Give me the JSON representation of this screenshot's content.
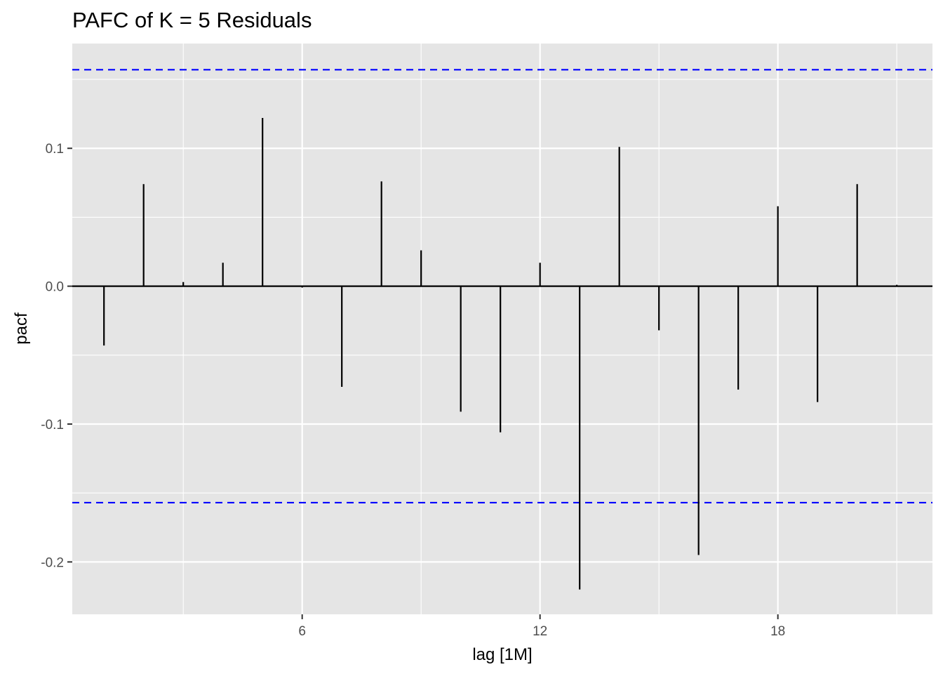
{
  "chart_data": {
    "type": "bar",
    "title": "PAFC of K = 5 Residuals",
    "xlabel": "lag [1M]",
    "ylabel": "pacf",
    "x": [
      1,
      2,
      3,
      4,
      5,
      6,
      7,
      8,
      9,
      10,
      11,
      12,
      13,
      14,
      15,
      16,
      17,
      18,
      19,
      20,
      21
    ],
    "values": [
      -0.043,
      0.074,
      0.003,
      0.017,
      0.122,
      -0.001,
      -0.073,
      0.076,
      0.026,
      -0.091,
      -0.106,
      0.017,
      -0.22,
      0.101,
      -0.032,
      -0.195,
      -0.075,
      0.058,
      -0.084,
      0.074,
      0.001
    ],
    "xlim": [
      0.2,
      21.9
    ],
    "ylim": [
      -0.238,
      0.176
    ],
    "x_ticks": [
      6,
      12,
      18
    ],
    "x_tick_labels": [
      "6",
      "12",
      "18"
    ],
    "y_ticks": [
      -0.2,
      -0.1,
      0.0,
      0.1
    ],
    "y_tick_labels": [
      "-0.2",
      "-0.1",
      "0.0",
      "0.1"
    ],
    "confidence_bounds": [
      0.157,
      -0.157
    ],
    "grid": true,
    "legend": "none",
    "colors": {
      "panel_background": "#e5e5e5",
      "grid": "#ffffff",
      "bars": "#000000",
      "bounds": "#0000ff"
    }
  }
}
